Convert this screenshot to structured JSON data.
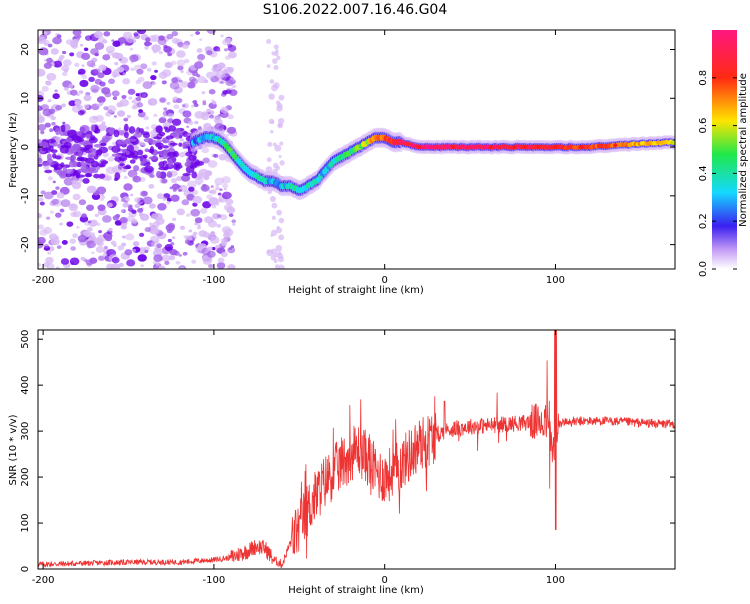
{
  "title": "S106.2022.007.16.46.G04",
  "colors": {
    "background": "#ffffff",
    "snr_line": "#ee3333",
    "scatter_light": "#d7b8f5",
    "scatter_mid": "#9f5be8",
    "scatter_dark": "#6a00e6",
    "ridge_blue": "#3a2af0",
    "ridge_cyan": "#22d8e8",
    "ridge_green": "#2ee84a",
    "ridge_red": "#ff2020"
  },
  "chart_data": [
    {
      "type": "heatmap",
      "title": "S106.2022.007.16.46.G04",
      "xlabel": "Height of straight line (km)",
      "ylabel": "Frequency (Hz)",
      "xlim": [
        -203,
        170
      ],
      "ylim": [
        -25,
        24
      ],
      "x_ticks": [
        -200,
        -100,
        0,
        100
      ],
      "y_ticks": [
        20,
        10,
        0,
        -10,
        -20
      ],
      "grid": false,
      "colorbar": {
        "label": "Normalized spectral amplitude",
        "range": [
          0,
          1
        ],
        "ticks": [
          0.0,
          0.2,
          0.4,
          0.6,
          0.8
        ],
        "colormap": "white-purple-blue-cyan-green-yellow-red-magenta"
      },
      "ridge": {
        "x": [
          -112,
          -105,
          -100,
          -95,
          -90,
          -85,
          -80,
          -75,
          -70,
          -65,
          -60,
          -55,
          -50,
          -45,
          -40,
          -35,
          -30,
          -25,
          -20,
          -15,
          -10,
          -5,
          0,
          5,
          10,
          20,
          40,
          60,
          80,
          100,
          120,
          140,
          170
        ],
        "freq": [
          1,
          2,
          2,
          1,
          -1,
          -3,
          -5,
          -6,
          -7,
          -7,
          -8,
          -8,
          -9,
          -8,
          -7,
          -5,
          -3,
          -2,
          -1,
          0,
          1,
          2,
          2,
          1,
          1,
          0,
          0,
          0,
          0,
          0,
          0,
          0.5,
          1
        ],
        "amplitude": [
          0.25,
          0.3,
          0.35,
          0.4,
          0.45,
          0.4,
          0.35,
          0.4,
          0.35,
          0.3,
          0.3,
          0.4,
          0.35,
          0.4,
          0.35,
          0.3,
          0.35,
          0.4,
          0.45,
          0.5,
          0.6,
          0.7,
          0.8,
          0.85,
          0.9,
          0.95,
          0.95,
          0.95,
          0.9,
          0.85,
          0.8,
          0.7,
          0.6
        ]
      }
    },
    {
      "type": "line",
      "xlabel": "Height of straight line (km)",
      "ylabel": "SNR (10 * v/v)",
      "xlim": [
        -203,
        170
      ],
      "ylim": [
        0,
        520
      ],
      "x_ticks": [
        -200,
        -100,
        0,
        100
      ],
      "y_ticks": [
        0,
        100,
        200,
        300,
        400,
        500
      ],
      "grid": false,
      "series": [
        {
          "x": [
            -203,
            -180,
            -160,
            -140,
            -120,
            -100,
            -90,
            -80,
            -75,
            -70,
            -65,
            -60,
            -55,
            -50,
            -45,
            -40,
            -35,
            -30,
            -25,
            -20,
            -15,
            -10,
            -5,
            0,
            5,
            10,
            15,
            20,
            25,
            30,
            35,
            40,
            50,
            60,
            70,
            80,
            90,
            95,
            100,
            102,
            105,
            110,
            120,
            130,
            140,
            150,
            160,
            170
          ],
          "values": [
            10,
            12,
            14,
            15,
            15,
            20,
            25,
            40,
            50,
            45,
            20,
            10,
            60,
            90,
            130,
            160,
            190,
            210,
            230,
            250,
            260,
            240,
            210,
            200,
            210,
            230,
            250,
            270,
            280,
            290,
            300,
            305,
            310,
            312,
            315,
            318,
            320,
            320,
            240,
            315,
            320,
            320,
            322,
            322,
            320,
            318,
            316,
            315
          ]
        }
      ]
    }
  ]
}
